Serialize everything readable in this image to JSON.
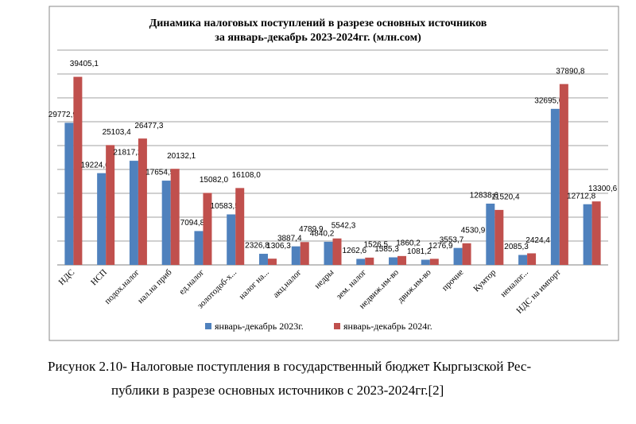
{
  "chart_data": {
    "type": "bar",
    "title": "Динамика налоговых поступлений в разрезе основных источников",
    "subtitle": "за январь-декабрь  2023-2024гг. (млн.сом)",
    "categories": [
      "НДС",
      "НСП",
      "подох.налог",
      "нал.на приб",
      "ед.налог",
      "золотодоб-х...",
      "налог на...",
      "акц.налог",
      "недры",
      "зем. налог",
      "недвиж.им-во",
      "движ.им-во",
      "прочие",
      "Кумтор",
      "неналог...",
      "НДС на импорт",
      null
    ],
    "series": [
      {
        "name": "январь-декабрь 2023г.",
        "color": "#4f81bd",
        "values": [
          29772.9,
          19224.6,
          21817.2,
          17654.5,
          7094.8,
          10583.5,
          2326.8,
          3887.4,
          4840.2,
          1262.6,
          1585.3,
          1081.2,
          3553.7,
          12838.6,
          2085.3,
          32695.0,
          12712.8
        ],
        "value_labels": [
          "29772,9",
          "19224,6",
          "21817,2",
          "17654,5",
          "7094,8",
          "10583,5",
          "2326,8",
          "3887,4",
          "4840,2",
          "1262,6",
          "1585,3",
          "1081,2",
          "3553,7",
          "12838,6",
          "2085,3",
          "32695,0",
          "12712,8"
        ]
      },
      {
        "name": "январь-декабрь 2024г.",
        "color": "#c0504d",
        "values": [
          39405.1,
          25103.4,
          26477.3,
          20132.1,
          15082.0,
          16108.0,
          1306.3,
          4789.9,
          5542.3,
          1526.5,
          1860.2,
          1276.9,
          4530.9,
          11520.4,
          2424.4,
          37890.8,
          13300.6
        ],
        "value_labels": [
          "39405,1",
          "25103,4",
          "26477,3",
          "20132,1",
          "15082,0",
          "16108,0",
          "1306,3",
          "4789,9",
          "5542,3",
          "1526,5",
          "1860,2",
          "1276,9",
          "4530,9",
          "11520,4",
          "2424,4",
          "37890,8",
          "13300,6"
        ]
      }
    ],
    "ylim": [
      0,
      45000
    ],
    "yticks": [
      0,
      5000,
      10000,
      15000,
      20000,
      25000,
      30000,
      35000,
      40000,
      45000
    ],
    "grid": true,
    "legend": "bottom"
  },
  "caption": [
    "Рисунок 2.10- Налоговые поступления в государственный бюджет Кыргызской Рес-",
    "публики в разрезе основных источников с 2023-2024гг.[2]"
  ]
}
